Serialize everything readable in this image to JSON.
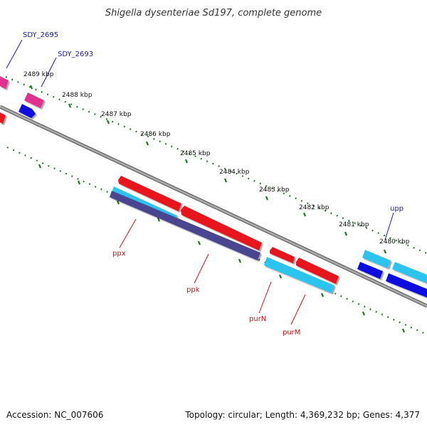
{
  "title": "Shigella dysenteriae Sd197, complete genome",
  "accession_text": "Accession: NC_007606",
  "topology_text": "Topology: circular; Length: 4,369,232 bp; Genes: 4,377",
  "colors": {
    "backbone": "#888888",
    "ticks": "#1a7a1a",
    "cds_red": "#e8141c",
    "cds_cyan": "#2cc4ee",
    "cds_blue": "#1010e0",
    "cds_purple": "#4a4490",
    "cds_pink": "#e0338c",
    "label_blue": "#1a1aaa",
    "label_red": "#cc1111"
  },
  "tick_labels": [
    "2489 kbp",
    "2488 kbp",
    "2487 kbp",
    "2486 kbp",
    "2485 kbp",
    "2484 kbp",
    "2483 kbp",
    "2482 kbp",
    "2481 kbp",
    "2480 kbp"
  ],
  "gene_labels": {
    "sdy_2695": "SDY_2695",
    "sdy_2693": "SDY_2693",
    "upp": "upp",
    "ppx": "ppx",
    "ppk": "ppk",
    "purN": "purN",
    "purM": "purM"
  }
}
